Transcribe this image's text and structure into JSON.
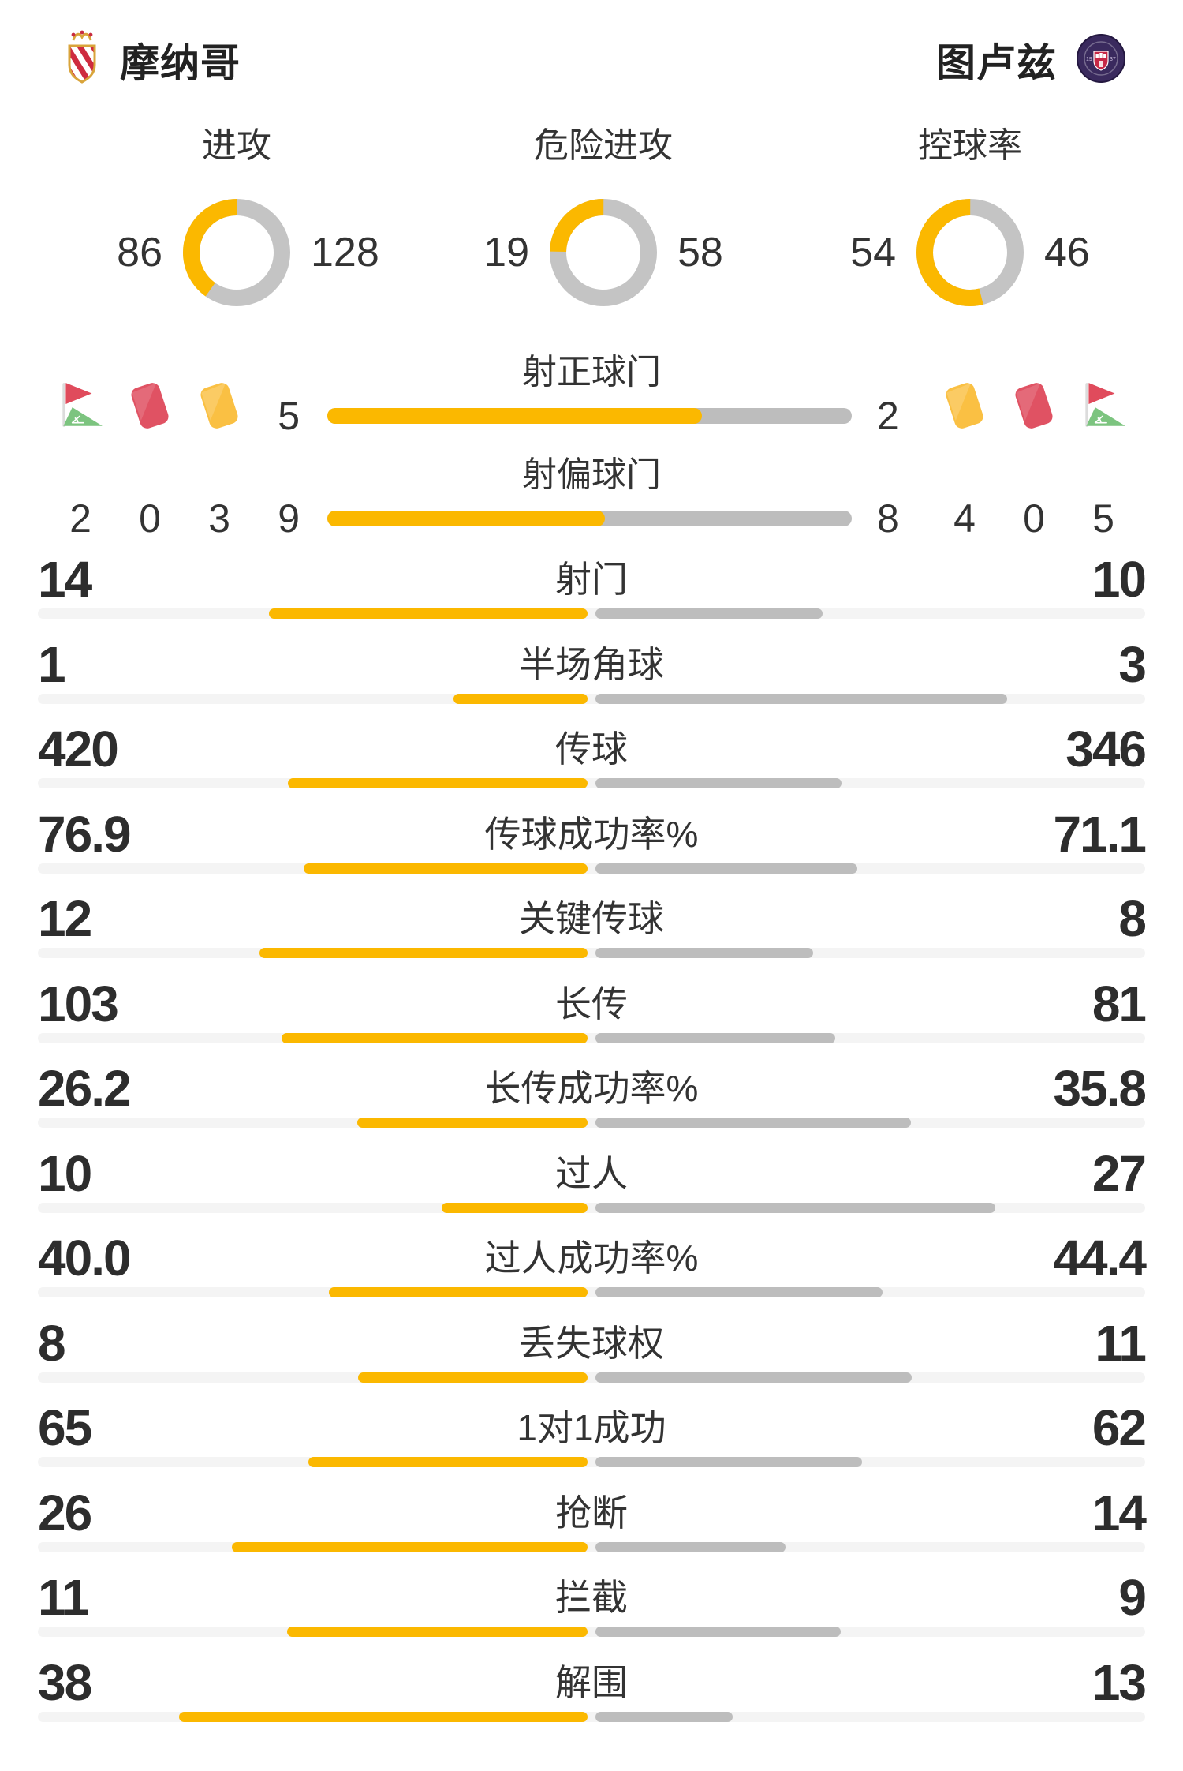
{
  "header": {
    "home_team": "摩纳哥",
    "away_team": "图卢兹"
  },
  "colors": {
    "home_accent": "#FBB800",
    "away_gray": "#BDBDBD",
    "donut_gray": "#C4C4C4",
    "track_gray": "#F4F4F4",
    "text_dark": "#333333",
    "number_dark": "#2D2D2D",
    "card_red": "#E05263",
    "card_yellow": "#FAC043",
    "flag_red": "#E04B5C",
    "flag_green": "#7CC47F"
  },
  "chart_data": {
    "type": "comparison-dashboard",
    "teams": [
      "摩纳哥",
      "图卢兹"
    ],
    "home_color": "#FBB800",
    "away_color": "#BDBDBD",
    "donuts": [
      {
        "title": "进攻",
        "values": [
          86,
          128
        ]
      },
      {
        "title": "危险进攻",
        "values": [
          19,
          58
        ]
      },
      {
        "title": "控球率",
        "values": [
          54,
          46
        ]
      }
    ],
    "discipline": {
      "home": [
        {
          "icon": "corner-flag",
          "value": 2
        },
        {
          "icon": "red-card",
          "value": 0
        },
        {
          "icon": "yellow-card",
          "value": 3
        }
      ],
      "away": [
        {
          "icon": "yellow-card",
          "value": 4
        },
        {
          "icon": "red-card",
          "value": 0
        },
        {
          "icon": "corner-flag",
          "value": 5
        }
      ]
    },
    "split_bars": [
      {
        "label": "射正球门",
        "values": [
          5,
          2
        ]
      },
      {
        "label": "射偏球门",
        "values": [
          9,
          8
        ]
      }
    ],
    "stat_rows": [
      {
        "label": "射门",
        "values": [
          "14",
          "10"
        ]
      },
      {
        "label": "半场角球",
        "values": [
          "1",
          "3"
        ]
      },
      {
        "label": "传球",
        "values": [
          "420",
          "346"
        ]
      },
      {
        "label": "传球成功率%",
        "values": [
          "76.9",
          "71.1"
        ]
      },
      {
        "label": "关键传球",
        "values": [
          "12",
          "8"
        ]
      },
      {
        "label": "长传",
        "values": [
          "103",
          "81"
        ]
      },
      {
        "label": "长传成功率%",
        "values": [
          "26.2",
          "35.8"
        ]
      },
      {
        "label": "过人",
        "values": [
          "10",
          "27"
        ]
      },
      {
        "label": "过人成功率%",
        "values": [
          "40.0",
          "44.4"
        ]
      },
      {
        "label": "丢失球权",
        "values": [
          "8",
          "11"
        ]
      },
      {
        "label": "1对1成功",
        "values": [
          "65",
          "62"
        ]
      },
      {
        "label": "抢断",
        "values": [
          "26",
          "14"
        ]
      },
      {
        "label": "拦截",
        "values": [
          "11",
          "9"
        ]
      },
      {
        "label": "解围",
        "values": [
          "38",
          "13"
        ]
      }
    ]
  }
}
